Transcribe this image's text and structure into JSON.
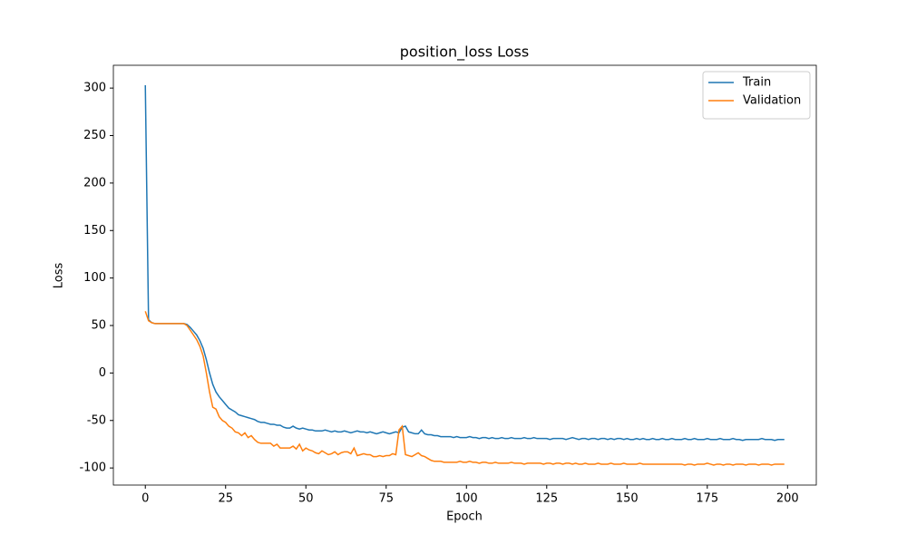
{
  "chart_data": {
    "type": "line",
    "title": "position_loss Loss",
    "x_label": "Epoch",
    "y_label": "Loss",
    "x": [
      0,
      1,
      2,
      3,
      4,
      5,
      6,
      7,
      8,
      9,
      10,
      11,
      12,
      13,
      14,
      15,
      16,
      17,
      18,
      19,
      20,
      21,
      22,
      23,
      24,
      25,
      26,
      27,
      28,
      29,
      30,
      31,
      32,
      33,
      34,
      35,
      36,
      37,
      38,
      39,
      40,
      41,
      42,
      43,
      44,
      45,
      46,
      47,
      48,
      49,
      50,
      51,
      52,
      53,
      54,
      55,
      56,
      57,
      58,
      59,
      60,
      61,
      62,
      63,
      64,
      65,
      66,
      67,
      68,
      69,
      70,
      71,
      72,
      73,
      74,
      75,
      76,
      77,
      78,
      79,
      80,
      81,
      82,
      83,
      84,
      85,
      86,
      87,
      88,
      89,
      90,
      91,
      92,
      93,
      94,
      95,
      96,
      97,
      98,
      99,
      100,
      101,
      102,
      103,
      104,
      105,
      106,
      107,
      108,
      109,
      110,
      111,
      112,
      113,
      114,
      115,
      116,
      117,
      118,
      119,
      120,
      121,
      122,
      123,
      124,
      125,
      126,
      127,
      128,
      129,
      130,
      131,
      132,
      133,
      134,
      135,
      136,
      137,
      138,
      139,
      140,
      141,
      142,
      143,
      144,
      145,
      146,
      147,
      148,
      149,
      150,
      151,
      152,
      153,
      154,
      155,
      156,
      157,
      158,
      159,
      160,
      161,
      162,
      163,
      164,
      165,
      166,
      167,
      168,
      169,
      170,
      171,
      172,
      173,
      174,
      175,
      176,
      177,
      178,
      179,
      180,
      181,
      182,
      183,
      184,
      185,
      186,
      187,
      188,
      189,
      190,
      191,
      192,
      193,
      194,
      195,
      196,
      197,
      198,
      199
    ],
    "series": [
      {
        "name": "Train",
        "color": "#1f77b4",
        "values": [
          303,
          56,
          53,
          52,
          52,
          52,
          52,
          52,
          52,
          52,
          52,
          52,
          52,
          51,
          48,
          44,
          40,
          34,
          26,
          14,
          0,
          -12,
          -20,
          -25,
          -29,
          -33,
          -37,
          -39,
          -41,
          -44,
          -45,
          -46,
          -47,
          -48,
          -49,
          -51,
          -52,
          -52,
          -53,
          -54,
          -54,
          -55,
          -55,
          -57,
          -58,
          -58,
          -56,
          -58,
          -59,
          -58,
          -59,
          -60,
          -60,
          -61,
          -61,
          -61,
          -60,
          -61,
          -62,
          -61,
          -62,
          -62,
          -61,
          -62,
          -63,
          -62,
          -61,
          -62,
          -62,
          -63,
          -62,
          -63,
          -64,
          -63,
          -62,
          -63,
          -64,
          -63,
          -62,
          -63,
          -57,
          -56,
          -62,
          -63,
          -64,
          -64,
          -60,
          -64,
          -65,
          -65,
          -66,
          -66,
          -67,
          -67,
          -67,
          -67,
          -68,
          -67,
          -68,
          -68,
          -68,
          -67,
          -68,
          -68,
          -69,
          -68,
          -68,
          -69,
          -68,
          -69,
          -69,
          -68,
          -69,
          -69,
          -68,
          -69,
          -69,
          -69,
          -68,
          -69,
          -69,
          -68,
          -69,
          -69,
          -69,
          -69,
          -70,
          -69,
          -69,
          -69,
          -69,
          -70,
          -69,
          -68,
          -69,
          -70,
          -69,
          -69,
          -70,
          -69,
          -69,
          -70,
          -69,
          -69,
          -70,
          -69,
          -70,
          -69,
          -69,
          -70,
          -69,
          -70,
          -70,
          -69,
          -70,
          -69,
          -70,
          -70,
          -69,
          -70,
          -70,
          -69,
          -70,
          -70,
          -69,
          -70,
          -70,
          -70,
          -69,
          -70,
          -70,
          -69,
          -70,
          -70,
          -70,
          -69,
          -70,
          -70,
          -70,
          -69,
          -70,
          -70,
          -70,
          -69,
          -70,
          -70,
          -71,
          -70,
          -70,
          -70,
          -70,
          -70,
          -69,
          -70,
          -70,
          -70,
          -71,
          -70,
          -70,
          -70
        ]
      },
      {
        "name": "Validation",
        "color": "#ff7f0e",
        "values": [
          65,
          55,
          53,
          52,
          52,
          52,
          52,
          52,
          52,
          52,
          52,
          52,
          52,
          50,
          45,
          40,
          35,
          28,
          18,
          0,
          -20,
          -36,
          -38,
          -46,
          -50,
          -52,
          -56,
          -58,
          -62,
          -63,
          -66,
          -63,
          -68,
          -66,
          -70,
          -73,
          -74,
          -74,
          -74,
          -74,
          -77,
          -75,
          -79,
          -79,
          -79,
          -79,
          -77,
          -80,
          -75,
          -82,
          -79,
          -81,
          -82,
          -84,
          -85,
          -82,
          -84,
          -86,
          -85,
          -83,
          -86,
          -84,
          -83,
          -83,
          -85,
          -79,
          -87,
          -86,
          -85,
          -86,
          -86,
          -88,
          -88,
          -87,
          -88,
          -87,
          -87,
          -85,
          -86,
          -60,
          -56,
          -86,
          -87,
          -88,
          -86,
          -84,
          -87,
          -88,
          -90,
          -92,
          -93,
          -93,
          -93,
          -94,
          -94,
          -94,
          -94,
          -94,
          -93,
          -94,
          -94,
          -93,
          -94,
          -94,
          -95,
          -94,
          -94,
          -95,
          -95,
          -94,
          -95,
          -95,
          -95,
          -95,
          -94,
          -95,
          -95,
          -95,
          -96,
          -95,
          -95,
          -95,
          -95,
          -95,
          -96,
          -95,
          -95,
          -96,
          -95,
          -95,
          -96,
          -95,
          -95,
          -96,
          -95,
          -96,
          -96,
          -95,
          -96,
          -96,
          -96,
          -95,
          -96,
          -96,
          -96,
          -95,
          -96,
          -96,
          -96,
          -95,
          -96,
          -96,
          -96,
          -96,
          -95,
          -96,
          -96,
          -96,
          -96,
          -96,
          -96,
          -96,
          -96,
          -96,
          -96,
          -96,
          -96,
          -96,
          -97,
          -96,
          -96,
          -97,
          -96,
          -96,
          -96,
          -95,
          -96,
          -97,
          -96,
          -96,
          -97,
          -96,
          -96,
          -97,
          -96,
          -96,
          -96,
          -97,
          -96,
          -96,
          -96,
          -97,
          -96,
          -96,
          -96,
          -97,
          -96,
          -96,
          -96,
          -96
        ]
      }
    ],
    "xlim": [
      -9.95,
      208.95
    ],
    "ylim": [
      -118,
      324
    ],
    "xticks": [
      0,
      25,
      50,
      75,
      100,
      125,
      150,
      175,
      200
    ],
    "yticks": [
      -100,
      -50,
      0,
      50,
      100,
      150,
      200,
      250,
      300
    ],
    "legend": "upper right"
  }
}
